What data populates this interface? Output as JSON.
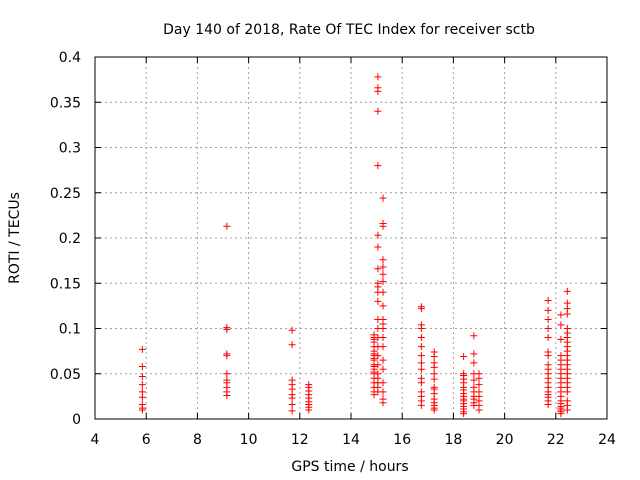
{
  "chart_data": {
    "type": "scatter",
    "title": "Day 140 of 2018, Rate Of TEC Index for receiver sctb",
    "xlabel": "GPS time / hours",
    "ylabel": "ROTI / TECUs",
    "xlim": [
      4,
      24
    ],
    "ylim": [
      0,
      0.4
    ],
    "grid": true,
    "marker": "+",
    "marker_color": "#ff0000",
    "x_ticks": [
      4,
      6,
      8,
      10,
      12,
      14,
      16,
      18,
      20,
      22,
      24
    ],
    "x_tick_labels": [
      "4",
      "6",
      "8",
      "10",
      "12",
      "14",
      "16",
      "18",
      "20",
      "22",
      "24"
    ],
    "y_ticks": [
      0,
      0.05,
      0.1,
      0.15,
      0.2,
      0.25,
      0.3,
      0.35,
      0.4
    ],
    "y_tick_labels": [
      "0",
      "0.05",
      "0.1",
      "0.15",
      "0.2",
      "0.25",
      "0.3",
      "0.35",
      "0.4"
    ],
    "series": [
      {
        "name": "ROTI",
        "x": [
          5.85,
          5.85,
          5.85,
          5.85,
          5.85,
          5.85,
          5.85,
          5.85,
          5.85,
          9.15,
          9.15,
          9.15,
          9.15,
          9.15,
          9.15,
          9.15,
          9.15,
          9.15,
          9.15,
          9.15,
          11.7,
          11.7,
          11.7,
          11.7,
          11.7,
          11.7,
          11.7,
          11.7,
          11.7,
          12.35,
          12.35,
          12.35,
          12.35,
          12.35,
          12.35,
          12.35,
          12.35,
          12.35,
          14.9,
          14.9,
          14.9,
          14.9,
          14.9,
          14.9,
          14.9,
          14.9,
          14.9,
          14.9,
          14.9,
          14.9,
          14.9,
          14.9,
          14.9,
          14.9,
          14.9,
          14.9,
          14.9,
          14.9,
          15.05,
          15.05,
          15.05,
          15.05,
          15.05,
          15.05,
          15.05,
          15.05,
          15.05,
          15.05,
          15.05,
          15.05,
          15.05,
          15.05,
          15.05,
          15.05,
          15.05,
          15.05,
          15.05,
          15.05,
          15.05,
          15.05,
          15.05,
          15.25,
          15.25,
          15.25,
          15.25,
          15.25,
          15.25,
          15.25,
          15.25,
          15.25,
          15.25,
          15.25,
          15.25,
          15.25,
          15.25,
          15.25,
          15.25,
          15.25,
          15.25,
          15.25,
          15.25,
          16.75,
          16.75,
          16.75,
          16.75,
          16.75,
          16.75,
          16.75,
          16.75,
          16.75,
          16.75,
          16.75,
          16.75,
          16.75,
          16.75,
          16.75,
          17.25,
          17.25,
          17.25,
          17.25,
          17.25,
          17.25,
          17.25,
          17.25,
          17.25,
          17.25,
          17.25,
          17.25,
          17.25,
          17.25,
          18.4,
          18.4,
          18.4,
          18.4,
          18.4,
          18.4,
          18.4,
          18.4,
          18.4,
          18.4,
          18.4,
          18.4,
          18.4,
          18.4,
          18.4,
          18.4,
          18.8,
          18.8,
          18.8,
          18.8,
          18.8,
          18.8,
          18.8,
          18.8,
          18.8,
          18.8,
          18.8,
          19.0,
          19.0,
          19.0,
          19.0,
          19.0,
          19.0,
          19.0,
          19.0,
          21.7,
          21.7,
          21.7,
          21.7,
          21.7,
          21.7,
          21.7,
          21.7,
          21.7,
          21.7,
          21.7,
          21.7,
          21.7,
          21.7,
          21.7,
          21.7,
          21.7,
          21.7,
          22.2,
          22.2,
          22.2,
          22.2,
          22.2,
          22.2,
          22.2,
          22.2,
          22.2,
          22.2,
          22.2,
          22.2,
          22.2,
          22.2,
          22.2,
          22.2,
          22.2,
          22.2,
          22.2,
          22.2,
          22.45,
          22.45,
          22.45,
          22.45,
          22.45,
          22.45,
          22.45,
          22.45,
          22.45,
          22.45,
          22.45,
          22.45,
          22.45,
          22.45,
          22.45,
          22.45,
          22.45,
          22.45,
          22.45,
          22.45,
          22.45,
          22.45
        ],
        "y": [
          0.077,
          0.058,
          0.047,
          0.038,
          0.03,
          0.024,
          0.016,
          0.012,
          0.01,
          0.213,
          0.101,
          0.099,
          0.072,
          0.07,
          0.05,
          0.043,
          0.04,
          0.035,
          0.03,
          0.026,
          0.098,
          0.082,
          0.043,
          0.038,
          0.033,
          0.027,
          0.023,
          0.016,
          0.009,
          0.038,
          0.035,
          0.031,
          0.027,
          0.023,
          0.019,
          0.016,
          0.013,
          0.01,
          0.093,
          0.088,
          0.085,
          0.08,
          0.072,
          0.067,
          0.06,
          0.055,
          0.052,
          0.05,
          0.045,
          0.04,
          0.035,
          0.03,
          0.027,
          0.065,
          0.07,
          0.075,
          0.09,
          0.058,
          0.378,
          0.366,
          0.362,
          0.34,
          0.28,
          0.203,
          0.19,
          0.166,
          0.15,
          0.146,
          0.14,
          0.13,
          0.11,
          0.1,
          0.09,
          0.08,
          0.07,
          0.06,
          0.05,
          0.045,
          0.04,
          0.035,
          0.03,
          0.244,
          0.216,
          0.213,
          0.176,
          0.168,
          0.16,
          0.152,
          0.14,
          0.125,
          0.11,
          0.105,
          0.1,
          0.09,
          0.08,
          0.065,
          0.055,
          0.04,
          0.03,
          0.022,
          0.018,
          0.124,
          0.122,
          0.104,
          0.1,
          0.09,
          0.08,
          0.07,
          0.062,
          0.055,
          0.045,
          0.04,
          0.03,
          0.025,
          0.02,
          0.015,
          0.074,
          0.069,
          0.062,
          0.057,
          0.05,
          0.044,
          0.035,
          0.033,
          0.028,
          0.022,
          0.018,
          0.015,
          0.012,
          0.01,
          0.069,
          0.05,
          0.048,
          0.044,
          0.04,
          0.035,
          0.032,
          0.028,
          0.025,
          0.022,
          0.02,
          0.017,
          0.014,
          0.011,
          0.008,
          0.006,
          0.092,
          0.072,
          0.062,
          0.05,
          0.043,
          0.035,
          0.03,
          0.025,
          0.022,
          0.018,
          0.015,
          0.05,
          0.045,
          0.038,
          0.03,
          0.025,
          0.02,
          0.015,
          0.01,
          0.131,
          0.12,
          0.11,
          0.1,
          0.09,
          0.074,
          0.07,
          0.06,
          0.055,
          0.05,
          0.045,
          0.04,
          0.035,
          0.03,
          0.027,
          0.024,
          0.02,
          0.016,
          0.115,
          0.104,
          0.088,
          0.07,
          0.065,
          0.06,
          0.055,
          0.05,
          0.045,
          0.04,
          0.035,
          0.03,
          0.025,
          0.02,
          0.017,
          0.014,
          0.012,
          0.01,
          0.008,
          0.006,
          0.141,
          0.128,
          0.122,
          0.116,
          0.1,
          0.095,
          0.09,
          0.085,
          0.08,
          0.075,
          0.07,
          0.065,
          0.06,
          0.055,
          0.05,
          0.045,
          0.04,
          0.035,
          0.03,
          0.02,
          0.015,
          0.01
        ]
      }
    ]
  }
}
